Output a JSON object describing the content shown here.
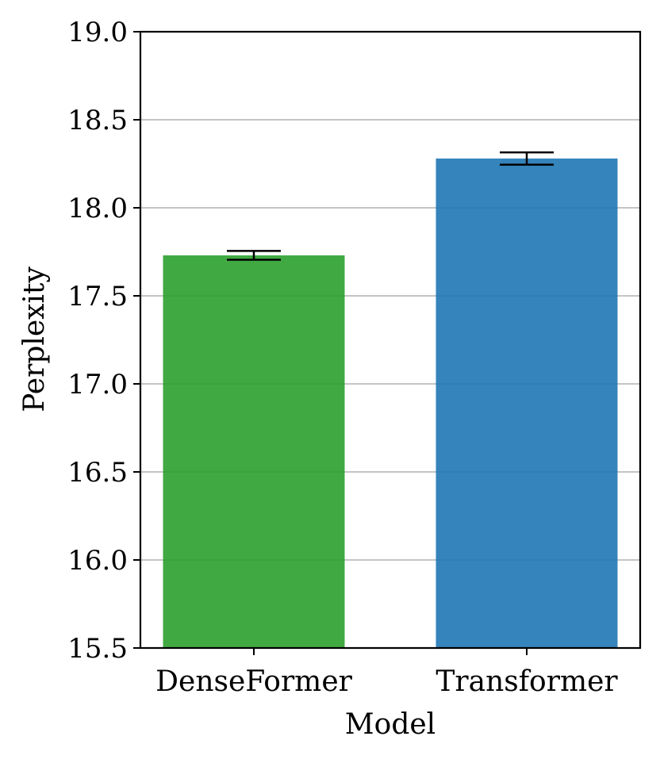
{
  "chart_data": {
    "type": "bar",
    "title": "",
    "xlabel": "Model",
    "ylabel": "Perplexity",
    "ylim": [
      15.5,
      19.0
    ],
    "yticks": [
      15.5,
      16.0,
      16.5,
      17.0,
      17.5,
      18.0,
      18.5,
      19.0
    ],
    "ytick_labels": [
      "15.5",
      "16.0",
      "16.5",
      "17.0",
      "17.5",
      "18.0",
      "18.5",
      "19.0"
    ],
    "categories": [
      "DenseFormer",
      "Transformer"
    ],
    "values": [
      17.73,
      18.28
    ],
    "errors": [
      0.025,
      0.035
    ],
    "colors": [
      "#2ca02c",
      "#1f77b4"
    ],
    "grid": "y",
    "legend": "none"
  }
}
